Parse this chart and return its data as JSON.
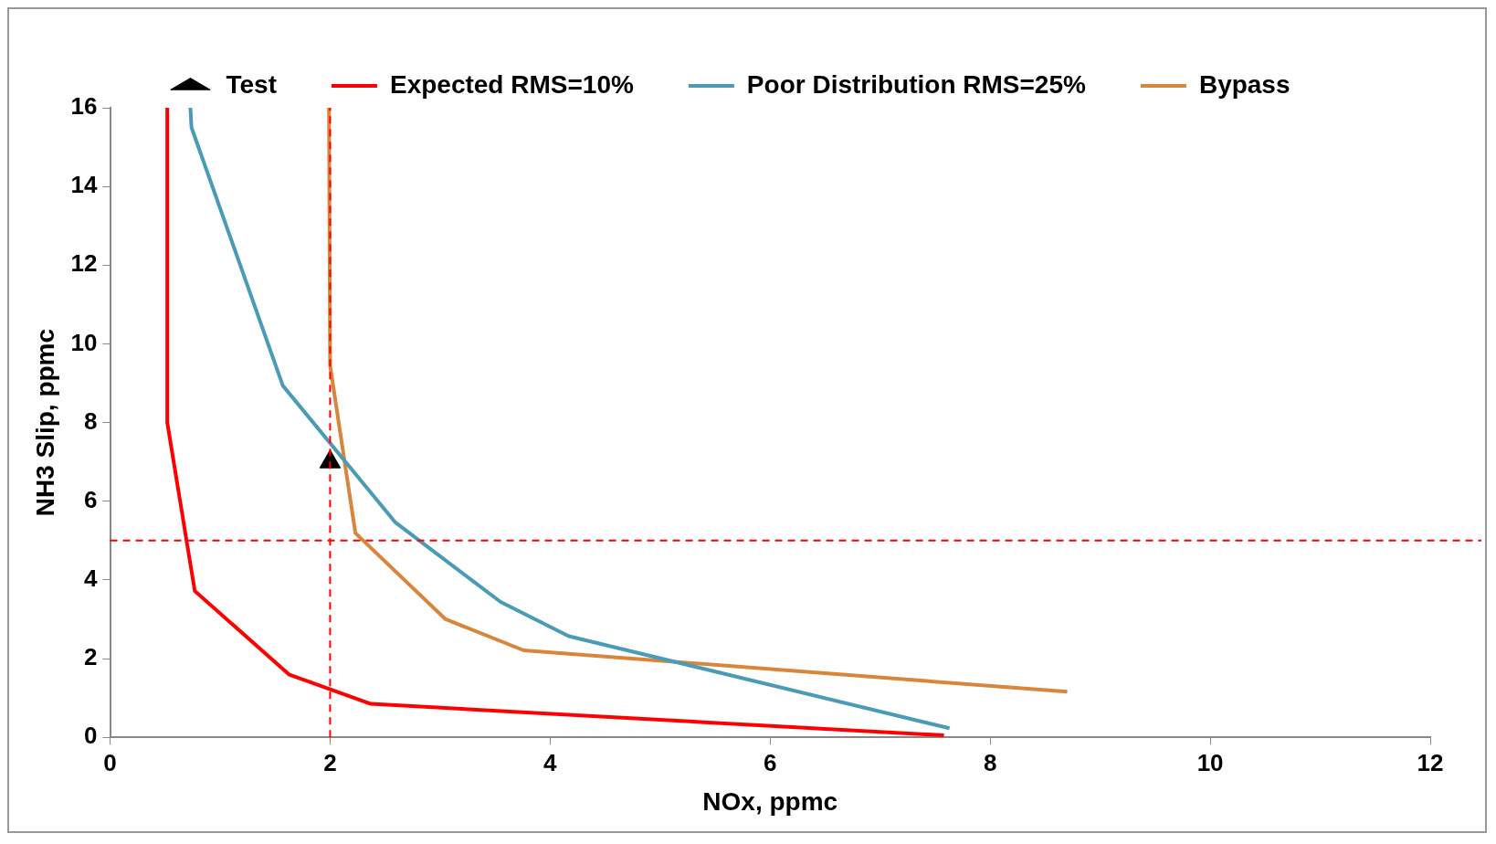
{
  "chart_data": {
    "type": "line",
    "xlabel": "NOx, ppmc",
    "ylabel": "NH3 Slip, ppmc",
    "xlim": [
      0,
      12
    ],
    "xticks": [
      0,
      2,
      4,
      6,
      8,
      10,
      12
    ],
    "ylim": [
      0,
      16
    ],
    "yticks": [
      0,
      2,
      4,
      6,
      8,
      10,
      12,
      14,
      16
    ],
    "grid": false,
    "legend": "top",
    "line_style": "solid",
    "series": [
      {
        "name": "Expected RMS=10%",
        "color": "#ff0000",
        "marker": "none",
        "x": [
          0.52,
          0.52,
          0.77,
          1.63,
          2.37,
          7.58
        ],
        "values": [
          16,
          8.0,
          3.72,
          1.59,
          0.85,
          0.05
        ]
      },
      {
        "name": "Test",
        "type": "scatter",
        "color": "#000000",
        "marker": "triangle",
        "x": [
          2.0
        ],
        "values": [
          7.0
        ]
      },
      {
        "name": "Poor Distribution RMS=25%",
        "color": "#4a9bb5",
        "marker": "none",
        "x": [
          0.73,
          0.74,
          1.57,
          2.59,
          3.55,
          4.17,
          7.63
        ],
        "values": [
          16,
          15.5,
          8.94,
          5.47,
          3.44,
          2.57,
          0.23
        ]
      },
      {
        "name": "Bypass",
        "color": "#d9853b",
        "marker": "none",
        "x": [
          1.99,
          2.0,
          2.23,
          3.05,
          3.76,
          8.7
        ],
        "values": [
          16,
          9.45,
          5.19,
          3.0,
          2.21,
          1.16
        ]
      }
    ],
    "ref_lines": [
      {
        "axis": "x",
        "value": 2,
        "color": "#ff0000",
        "line_style": "dashed"
      },
      {
        "axis": "y",
        "value": 5,
        "color": "#ff0000",
        "line_style": "dashed"
      }
    ]
  }
}
